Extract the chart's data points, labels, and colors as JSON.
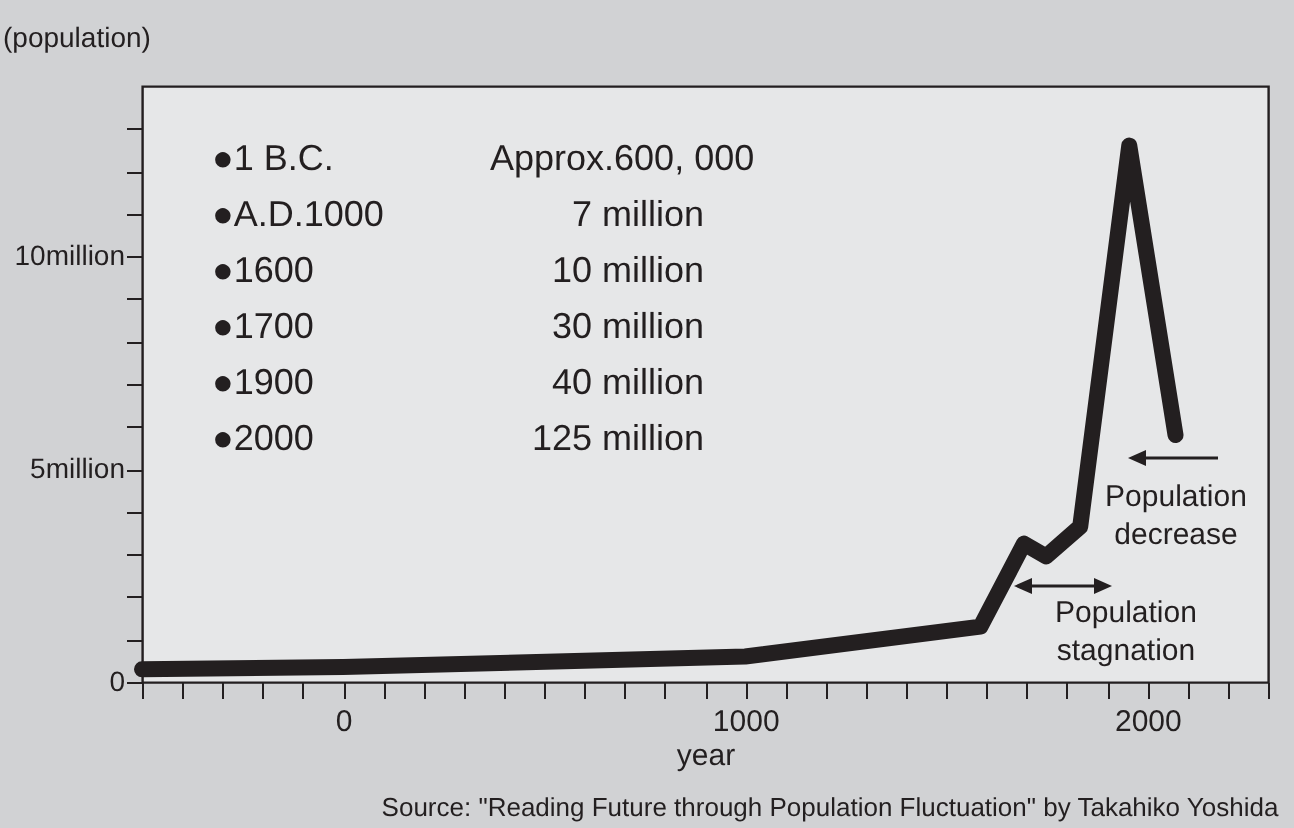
{
  "chart_data": {
    "type": "line",
    "xlabel": "year",
    "ylabel": "(population)",
    "x": [
      -500,
      0,
      1000,
      1585,
      1693,
      1748,
      1833,
      1955,
      2070
    ],
    "series": [
      {
        "color": "#231f20",
        "values": [
          0.3,
          0.35,
          0.6,
          1.3,
          3.25,
          2.95,
          3.65,
          12.6,
          5.8
        ]
      }
    ],
    "xlim": [
      -500,
      2300
    ],
    "xticks": [
      {
        "value": -500,
        "label": null
      },
      {
        "value": -400,
        "label": null
      },
      {
        "value": -300,
        "label": null
      },
      {
        "value": -200,
        "label": null
      },
      {
        "value": -100,
        "label": null
      },
      0,
      {
        "value": 100,
        "label": null
      },
      {
        "value": 200,
        "label": null
      },
      {
        "value": 300,
        "label": null
      },
      {
        "value": 400,
        "label": null
      },
      {
        "value": 500,
        "label": null
      },
      {
        "value": 600,
        "label": null
      },
      {
        "value": 700,
        "label": null
      },
      {
        "value": 800,
        "label": null
      },
      {
        "value": 900,
        "label": null
      },
      1000,
      {
        "value": 1100,
        "label": null
      },
      {
        "value": 1200,
        "label": null
      },
      {
        "value": 1300,
        "label": null
      },
      {
        "value": 1400,
        "label": null
      },
      {
        "value": 1500,
        "label": null
      },
      {
        "value": 1600,
        "label": null
      },
      {
        "value": 1700,
        "label": null
      },
      {
        "value": 1800,
        "label": null
      },
      {
        "value": 1900,
        "label": null
      },
      2000,
      {
        "value": 2100,
        "label": null
      },
      {
        "value": 2200,
        "label": null
      },
      {
        "value": 2300,
        "label": null
      }
    ],
    "ylim": [
      0,
      14
    ],
    "yticks": [
      0,
      {
        "value": 1,
        "label": null
      },
      {
        "value": 2,
        "label": null
      },
      {
        "value": 3,
        "label": null
      },
      {
        "value": 4,
        "label": null
      },
      {
        "value": 5,
        "label": "5million"
      },
      {
        "value": 6,
        "label": null
      },
      {
        "value": 7,
        "label": null
      },
      {
        "value": 8,
        "label": null
      },
      {
        "value": 9,
        "label": null
      },
      {
        "value": 10,
        "label": "10million"
      },
      {
        "value": 11,
        "label": null
      },
      {
        "value": 12,
        "label": null
      },
      {
        "value": 13,
        "label": null
      }
    ],
    "grid": false,
    "marker": "none",
    "line_style": "solid",
    "legend": false,
    "annotations": [
      "●1 B.C.",
      "●A.D.1000",
      "●1600",
      "●1700",
      "●1900",
      "●2000",
      "Approx.600, 000",
      "7 million",
      "10 million",
      "30 million",
      "40 million",
      "125 million",
      "Population decrease",
      "Population stagnation",
      "Source: \"Reading Future through Population Fluctuation\" by Takahiko Yoshida"
    ]
  }
}
